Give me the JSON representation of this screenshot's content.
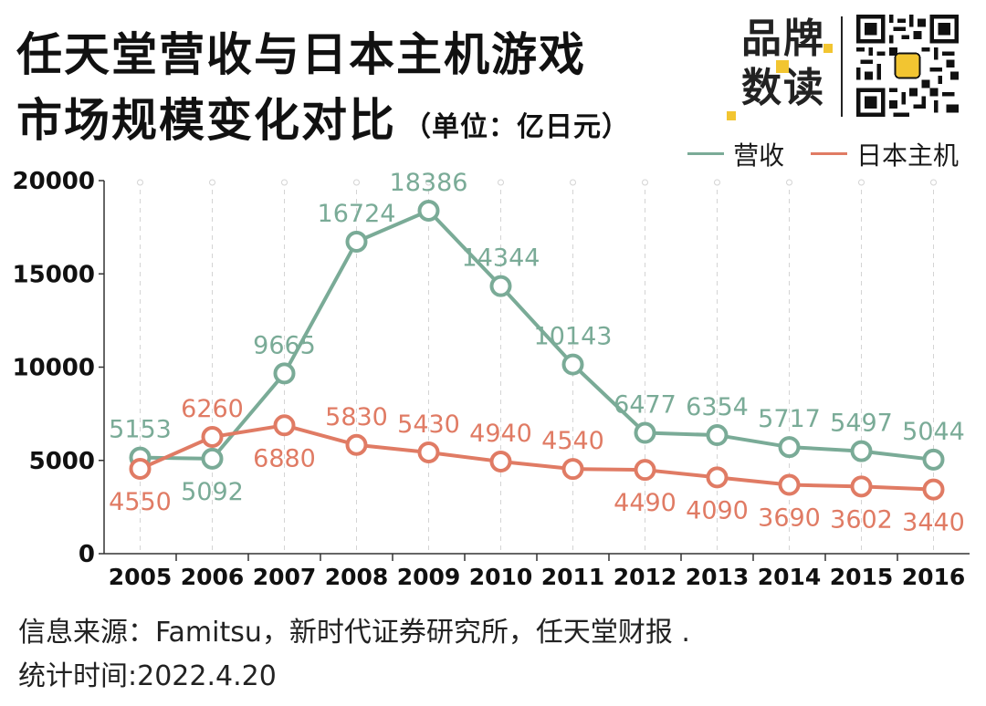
{
  "header": {
    "title_line1": "任天堂营收与日本主机游戏",
    "title_line2": "市场规模变化对比",
    "unit": "（单位：亿日元）"
  },
  "brand": {
    "line1": "品牌",
    "line2": "数读",
    "accent_color": "#f2c531"
  },
  "footer": {
    "source": "信息来源：Famitsu，新时代证券研究所，任天堂财报 .",
    "date": "统计时间:2022.4.20"
  },
  "chart_data": {
    "type": "line",
    "title": "任天堂营收与日本主机游戏市场规模变化对比",
    "xlabel": "",
    "ylabel": "",
    "categories": [
      "2005",
      "2006",
      "2007",
      "2008",
      "2009",
      "2010",
      "2011",
      "2012",
      "2013",
      "2014",
      "2015",
      "2016"
    ],
    "ylim": [
      0,
      20000
    ],
    "yticks": [
      0,
      5000,
      10000,
      15000,
      20000
    ],
    "grid": "vertical dashed",
    "legend_position": "top-right",
    "series": [
      {
        "name": "营收",
        "color": "#7aab97",
        "values": [
          5153,
          5092,
          9665,
          16724,
          18386,
          14344,
          10143,
          6477,
          6354,
          5717,
          5497,
          5044
        ],
        "label_side": [
          "above",
          "below",
          "above",
          "above",
          "above",
          "above",
          "above",
          "above",
          "above",
          "above",
          "above",
          "above"
        ]
      },
      {
        "name": "日本主机",
        "color": "#e07b64",
        "values": [
          4550,
          6260,
          6880,
          5830,
          5430,
          4940,
          4540,
          4490,
          4090,
          3690,
          3602,
          3440
        ],
        "label_side": [
          "below",
          "above",
          "below",
          "above",
          "above",
          "above",
          "above",
          "below",
          "below",
          "below",
          "below",
          "below"
        ]
      }
    ]
  }
}
